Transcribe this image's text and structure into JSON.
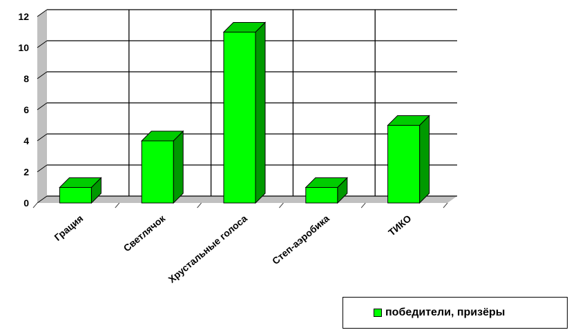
{
  "chart_data": {
    "type": "bar",
    "categories": [
      "Грация",
      "Светлячок",
      "Хрустальные голоса",
      "Степ-аэробика",
      "ТИКО"
    ],
    "series": [
      {
        "name": "победители, призёры",
        "values": [
          1,
          4,
          11,
          1,
          5
        ]
      }
    ],
    "ylim": [
      0,
      12
    ],
    "yticks": [
      "0",
      "2",
      "4",
      "6",
      "8",
      "10",
      "12"
    ],
    "title": "",
    "xlabel": "",
    "ylabel": "",
    "grid": true,
    "legend_position": "bottom-right",
    "colors": {
      "bar_front": "#00ff00",
      "bar_side": "#009900",
      "bar_top": "#00cc00",
      "wall": "#c0c0c0",
      "grid": "#000000"
    }
  }
}
